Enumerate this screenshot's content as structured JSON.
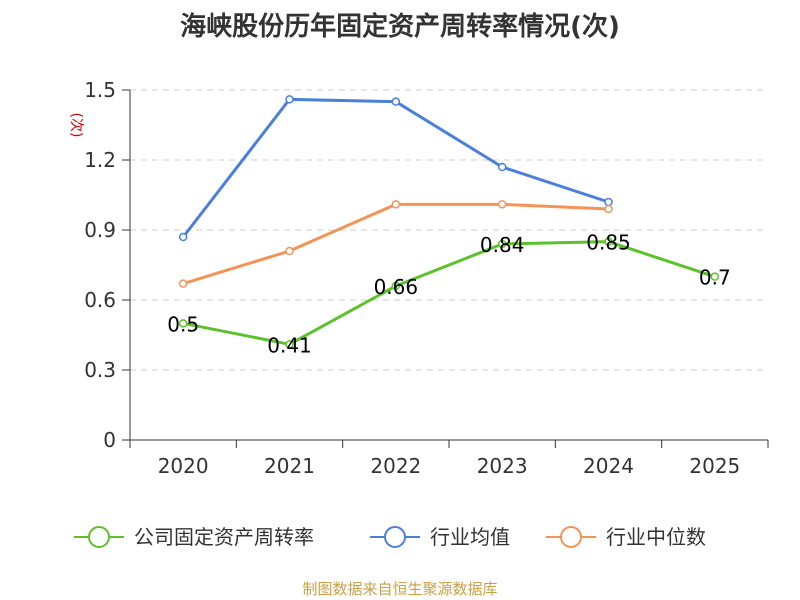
{
  "title": "海峡股份历年固定资产周转率情况(次)",
  "source": "制图数据来自恒生聚源数据库",
  "chart_data": {
    "type": "line",
    "title": "海峡股份历年固定资产周转率情况(次)",
    "ylabel": "(次)",
    "categories": [
      "2020",
      "2021",
      "2022",
      "2023",
      "2024",
      "2025"
    ],
    "ylim": [
      0,
      1.5
    ],
    "yticks": [
      0,
      0.3,
      0.6,
      0.9,
      1.2,
      1.5
    ],
    "ytick_labels": [
      "0",
      "0.3",
      "0.6",
      "0.9",
      "1.2",
      "1.5"
    ],
    "grid": true,
    "legend_position": "bottom",
    "series": [
      {
        "name": "公司固定资产周转率",
        "color": "#5cc22b",
        "values": [
          0.5,
          0.41,
          0.66,
          0.84,
          0.85,
          0.7
        ],
        "labels": [
          "0.5",
          "0.41",
          "0.66",
          "0.84",
          "0.85",
          "0.7"
        ]
      },
      {
        "name": "行业均值",
        "color": "#4a7fdc",
        "values": [
          0.87,
          1.46,
          1.45,
          1.17,
          1.02,
          null
        ]
      },
      {
        "name": "行业中位数",
        "color": "#f59356",
        "values": [
          0.67,
          0.81,
          1.01,
          1.01,
          0.99,
          null
        ]
      }
    ]
  }
}
